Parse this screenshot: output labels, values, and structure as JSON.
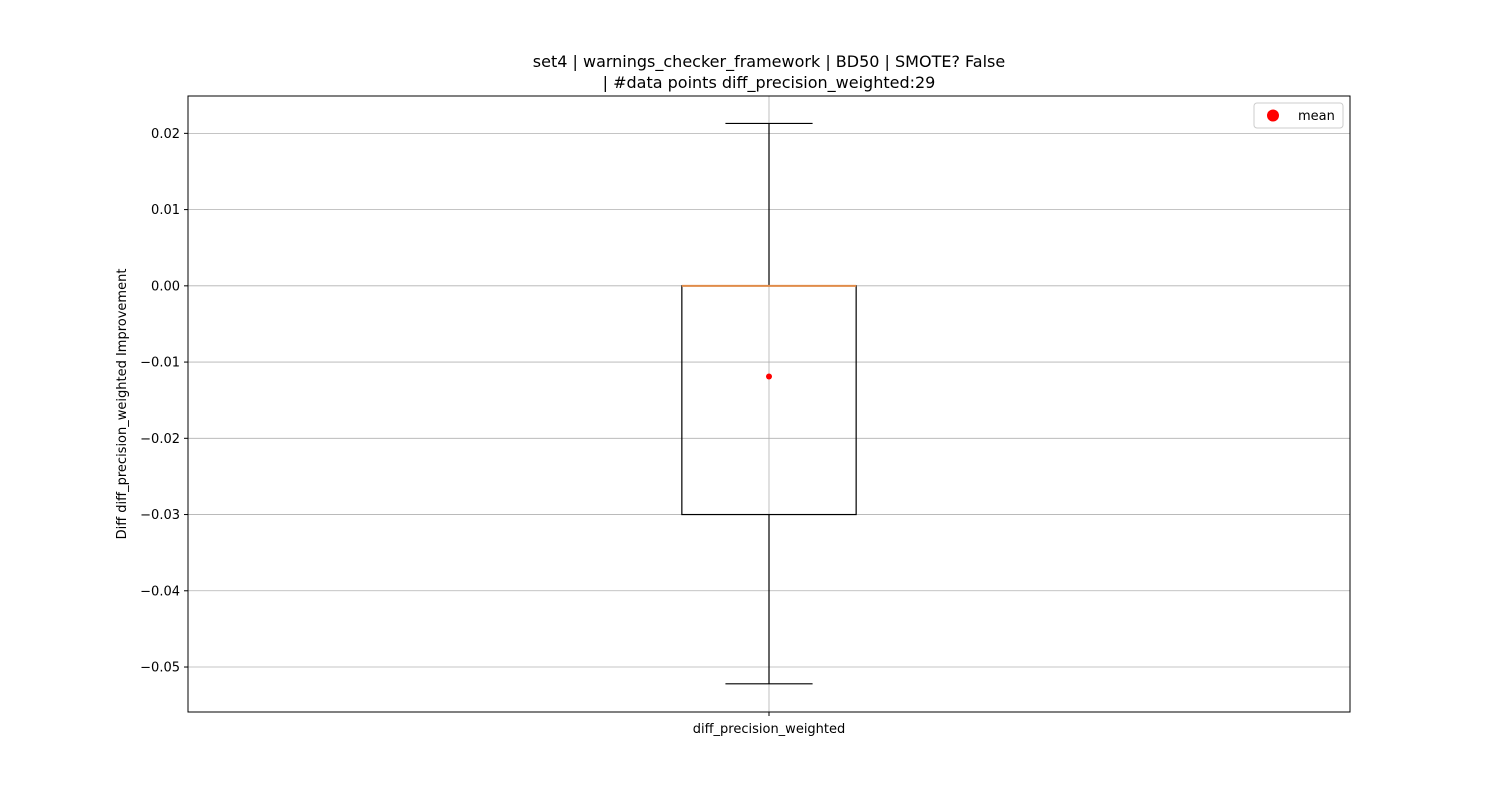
{
  "chart_data": {
    "type": "box",
    "title_line1": "set4 | warnings_checker_framework | BD50 | SMOTE? False",
    "title_line2": "| #data points diff_precision_weighted:29",
    "xlabel": "",
    "ylabel": "Diff diff_precision_weighted Improvement",
    "categories": [
      "diff_precision_weighted"
    ],
    "ylim": [
      -0.0559,
      0.0249
    ],
    "yticks": [
      0.02,
      0.01,
      0.0,
      -0.01,
      -0.02,
      -0.03,
      -0.04,
      -0.05
    ],
    "ytick_labels": [
      "0.02",
      "0.01",
      "0.00",
      "−0.01",
      "−0.02",
      "−0.03",
      "−0.04",
      "−0.05"
    ],
    "grid": true,
    "legend": {
      "position": "top-right",
      "entries": [
        "mean"
      ]
    },
    "boxes": [
      {
        "category": "diff_precision_weighted",
        "whisker_low": -0.0522,
        "q1": -0.03,
        "median": 0.0,
        "q3": 0.0,
        "whisker_high": 0.0213,
        "mean": -0.0119
      }
    ],
    "colors": {
      "box": "#000000",
      "median": "#e08c4a",
      "mean": "#ff0000",
      "grid": "#b0b0b0"
    }
  }
}
